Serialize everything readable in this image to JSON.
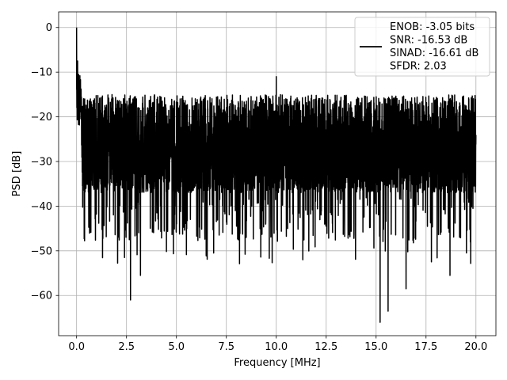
{
  "chart_data": {
    "type": "line",
    "xlabel": "Frequency [MHz]",
    "ylabel": "PSD [dB]",
    "xlim": [
      -0.9,
      21.0
    ],
    "ylim": [
      -69.0,
      3.5
    ],
    "xticks": [
      0.0,
      2.5,
      5.0,
      7.5,
      10.0,
      12.5,
      15.0,
      17.5,
      20.0
    ],
    "xtick_labels": [
      "0.0",
      "2.5",
      "5.0",
      "7.5",
      "10.0",
      "12.5",
      "15.0",
      "17.5",
      "20.0"
    ],
    "yticks": [
      0,
      -10,
      -20,
      -30,
      -40,
      -50,
      -60
    ],
    "ytick_labels": [
      "0",
      "−10",
      "−20",
      "−30",
      "−40",
      "−50",
      "−60"
    ],
    "grid": true,
    "legend_position": "upper-right",
    "series": [
      {
        "color": "#000000",
        "x_range": [
          0.0,
          20.0
        ],
        "noise_floor_approx": -28,
        "peak_envelope_approx": -16,
        "spikes": [
          {
            "x": 0.0,
            "y": 0.0
          },
          {
            "x": 0.05,
            "y": -7.5
          },
          {
            "x": 0.1,
            "y": -10.5
          },
          {
            "x": 10.0,
            "y": -11.0
          },
          {
            "x": 2.7,
            "y": -61.0
          },
          {
            "x": 15.2,
            "y": -66.0
          },
          {
            "x": 15.6,
            "y": -63.5
          },
          {
            "x": 2.4,
            "y": -51.5
          },
          {
            "x": 3.2,
            "y": -55.5
          },
          {
            "x": 16.5,
            "y": -58.5
          },
          {
            "x": 18.7,
            "y": -55.5
          }
        ]
      }
    ],
    "legend_lines": [
      "ENOB: -3.05 bits",
      "SNR: -16.53 dB",
      "SINAD: -16.61 dB",
      "SFDR: 2.03"
    ]
  },
  "colors": {
    "line": "#000000",
    "grid": "#b0b0b0",
    "frame": "#000000",
    "legend_border": "#cccccc"
  }
}
